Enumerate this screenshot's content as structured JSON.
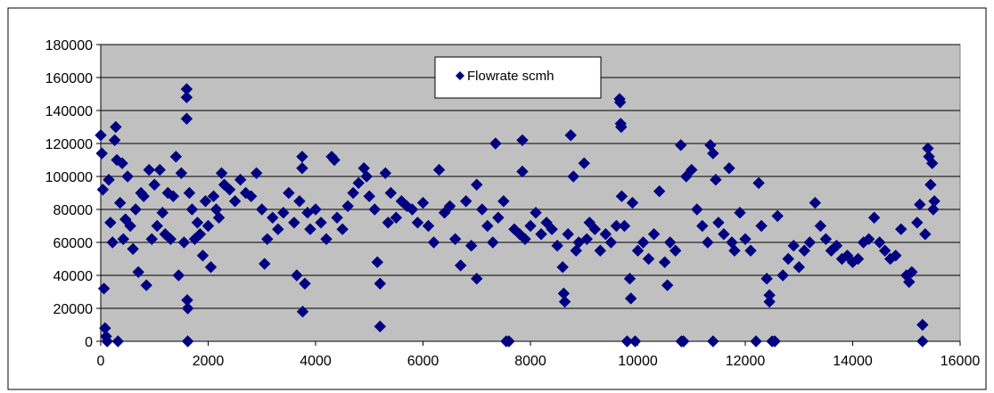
{
  "chart_data": {
    "type": "scatter",
    "title": "",
    "xlabel": "",
    "ylabel": "",
    "xlim": [
      0,
      16000
    ],
    "ylim": [
      0,
      180000
    ],
    "x_ticks": [
      0,
      2000,
      4000,
      6000,
      8000,
      10000,
      12000,
      14000,
      16000
    ],
    "y_ticks": [
      0,
      20000,
      40000,
      60000,
      80000,
      100000,
      120000,
      140000,
      160000,
      180000
    ],
    "x_tick_labels": [
      "0",
      "2000",
      "4000",
      "6000",
      "8000",
      "10000",
      "12000",
      "14000",
      "16000"
    ],
    "y_tick_labels": [
      "0",
      "20000",
      "40000",
      "60000",
      "80000",
      "100000",
      "120000",
      "140000",
      "160000",
      "180000"
    ],
    "grid": "horizontal",
    "legend_position": "top-center",
    "plot_background": "#c0c0c0",
    "marker": "diamond",
    "series": [
      {
        "name": "Flowrate scmh",
        "color": "#000080",
        "points": [
          [
            0,
            125000
          ],
          [
            20,
            114000
          ],
          [
            40,
            92000
          ],
          [
            60,
            32000
          ],
          [
            80,
            8000
          ],
          [
            100,
            3000
          ],
          [
            120,
            0
          ],
          [
            150,
            98000
          ],
          [
            180,
            72000
          ],
          [
            220,
            60000
          ],
          [
            260,
            122000
          ],
          [
            280,
            130000
          ],
          [
            300,
            110000
          ],
          [
            320,
            0
          ],
          [
            360,
            84000
          ],
          [
            400,
            108000
          ],
          [
            420,
            62000
          ],
          [
            460,
            74000
          ],
          [
            500,
            100000
          ],
          [
            550,
            70000
          ],
          [
            600,
            56000
          ],
          [
            650,
            80000
          ],
          [
            700,
            42000
          ],
          [
            750,
            90000
          ],
          [
            800,
            88000
          ],
          [
            850,
            34000
          ],
          [
            900,
            104000
          ],
          [
            950,
            62000
          ],
          [
            1000,
            95000
          ],
          [
            1050,
            70000
          ],
          [
            1100,
            104000
          ],
          [
            1150,
            78000
          ],
          [
            1200,
            65000
          ],
          [
            1250,
            90000
          ],
          [
            1300,
            62000
          ],
          [
            1350,
            88000
          ],
          [
            1400,
            112000
          ],
          [
            1450,
            40000
          ],
          [
            1500,
            102000
          ],
          [
            1550,
            60000
          ],
          [
            1600,
            153000
          ],
          [
            1600,
            148000
          ],
          [
            1600,
            135000
          ],
          [
            1610,
            25000
          ],
          [
            1620,
            20000
          ],
          [
            1620,
            0
          ],
          [
            1650,
            90000
          ],
          [
            1700,
            80000
          ],
          [
            1750,
            62000
          ],
          [
            1800,
            72000
          ],
          [
            1850,
            65000
          ],
          [
            1900,
            52000
          ],
          [
            1950,
            85000
          ],
          [
            2000,
            70000
          ],
          [
            2050,
            45000
          ],
          [
            2100,
            88000
          ],
          [
            2150,
            80000
          ],
          [
            2200,
            75000
          ],
          [
            2250,
            102000
          ],
          [
            2300,
            95000
          ],
          [
            2400,
            92000
          ],
          [
            2500,
            85000
          ],
          [
            2600,
            98000
          ],
          [
            2700,
            90000
          ],
          [
            2800,
            88000
          ],
          [
            2900,
            102000
          ],
          [
            3000,
            80000
          ],
          [
            3050,
            47000
          ],
          [
            3100,
            62000
          ],
          [
            3200,
            75000
          ],
          [
            3300,
            68000
          ],
          [
            3400,
            78000
          ],
          [
            3500,
            90000
          ],
          [
            3600,
            72000
          ],
          [
            3650,
            40000
          ],
          [
            3700,
            85000
          ],
          [
            3750,
            112000
          ],
          [
            3750,
            105000
          ],
          [
            3760,
            18000
          ],
          [
            3800,
            35000
          ],
          [
            3850,
            78000
          ],
          [
            3900,
            68000
          ],
          [
            4000,
            80000
          ],
          [
            4100,
            72000
          ],
          [
            4200,
            62000
          ],
          [
            4300,
            112000
          ],
          [
            4350,
            110000
          ],
          [
            4400,
            75000
          ],
          [
            4500,
            68000
          ],
          [
            4600,
            82000
          ],
          [
            4700,
            90000
          ],
          [
            4800,
            96000
          ],
          [
            4900,
            105000
          ],
          [
            4950,
            100000
          ],
          [
            5000,
            88000
          ],
          [
            5100,
            80000
          ],
          [
            5150,
            48000
          ],
          [
            5200,
            35000
          ],
          [
            5200,
            9000
          ],
          [
            5300,
            102000
          ],
          [
            5350,
            72000
          ],
          [
            5400,
            90000
          ],
          [
            5500,
            75000
          ],
          [
            5600,
            85000
          ],
          [
            5700,
            82000
          ],
          [
            5800,
            80000
          ],
          [
            5900,
            72000
          ],
          [
            6000,
            84000
          ],
          [
            6100,
            70000
          ],
          [
            6200,
            60000
          ],
          [
            6300,
            104000
          ],
          [
            6400,
            78000
          ],
          [
            6500,
            82000
          ],
          [
            6600,
            62000
          ],
          [
            6700,
            46000
          ],
          [
            6800,
            85000
          ],
          [
            6900,
            58000
          ],
          [
            7000,
            95000
          ],
          [
            7000,
            38000
          ],
          [
            7100,
            80000
          ],
          [
            7200,
            70000
          ],
          [
            7300,
            60000
          ],
          [
            7350,
            120000
          ],
          [
            7400,
            75000
          ],
          [
            7500,
            85000
          ],
          [
            7550,
            0
          ],
          [
            7600,
            0
          ],
          [
            7700,
            68000
          ],
          [
            7800,
            65000
          ],
          [
            7850,
            103000
          ],
          [
            7850,
            122000
          ],
          [
            7900,
            62000
          ],
          [
            8000,
            70000
          ],
          [
            8100,
            78000
          ],
          [
            8200,
            65000
          ],
          [
            8300,
            72000
          ],
          [
            8400,
            68000
          ],
          [
            8500,
            58000
          ],
          [
            8600,
            45000
          ],
          [
            8620,
            29000
          ],
          [
            8640,
            24000
          ],
          [
            8700,
            65000
          ],
          [
            8750,
            125000
          ],
          [
            8800,
            100000
          ],
          [
            8850,
            55000
          ],
          [
            8900,
            60000
          ],
          [
            9000,
            108000
          ],
          [
            9050,
            62000
          ],
          [
            9100,
            72000
          ],
          [
            9200,
            68000
          ],
          [
            9300,
            55000
          ],
          [
            9400,
            65000
          ],
          [
            9500,
            60000
          ],
          [
            9600,
            70000
          ],
          [
            9660,
            147000
          ],
          [
            9670,
            145000
          ],
          [
            9680,
            132000
          ],
          [
            9690,
            130000
          ],
          [
            9700,
            88000
          ],
          [
            9750,
            70000
          ],
          [
            9800,
            0
          ],
          [
            9850,
            38000
          ],
          [
            9870,
            26000
          ],
          [
            9900,
            84000
          ],
          [
            9950,
            0
          ],
          [
            10000,
            55000
          ],
          [
            10100,
            60000
          ],
          [
            10200,
            50000
          ],
          [
            10300,
            65000
          ],
          [
            10400,
            91000
          ],
          [
            10500,
            48000
          ],
          [
            10550,
            34000
          ],
          [
            10600,
            60000
          ],
          [
            10700,
            55000
          ],
          [
            10800,
            119000
          ],
          [
            10810,
            0
          ],
          [
            10850,
            0
          ],
          [
            10900,
            100000
          ],
          [
            11000,
            104000
          ],
          [
            11100,
            80000
          ],
          [
            11200,
            70000
          ],
          [
            11300,
            60000
          ],
          [
            11350,
            119000
          ],
          [
            11400,
            0
          ],
          [
            11400,
            114000
          ],
          [
            11450,
            98000
          ],
          [
            11500,
            72000
          ],
          [
            11600,
            65000
          ],
          [
            11700,
            105000
          ],
          [
            11750,
            60000
          ],
          [
            11800,
            55000
          ],
          [
            11900,
            78000
          ],
          [
            12000,
            62000
          ],
          [
            12100,
            55000
          ],
          [
            12200,
            0
          ],
          [
            12250,
            96000
          ],
          [
            12300,
            70000
          ],
          [
            12400,
            38000
          ],
          [
            12450,
            28000
          ],
          [
            12450,
            24000
          ],
          [
            12500,
            0
          ],
          [
            12550,
            0
          ],
          [
            12600,
            76000
          ],
          [
            12700,
            40000
          ],
          [
            12800,
            50000
          ],
          [
            12900,
            58000
          ],
          [
            13000,
            45000
          ],
          [
            13100,
            55000
          ],
          [
            13200,
            60000
          ],
          [
            13300,
            84000
          ],
          [
            13400,
            70000
          ],
          [
            13500,
            62000
          ],
          [
            13600,
            55000
          ],
          [
            13700,
            58000
          ],
          [
            13800,
            50000
          ],
          [
            13900,
            52000
          ],
          [
            14000,
            48000
          ],
          [
            14100,
            50000
          ],
          [
            14200,
            60000
          ],
          [
            14300,
            62000
          ],
          [
            14400,
            75000
          ],
          [
            14500,
            60000
          ],
          [
            14600,
            55000
          ],
          [
            14700,
            50000
          ],
          [
            14800,
            52000
          ],
          [
            14900,
            68000
          ],
          [
            15000,
            40000
          ],
          [
            15050,
            36000
          ],
          [
            15100,
            42000
          ],
          [
            15200,
            72000
          ],
          [
            15250,
            83000
          ],
          [
            15300,
            10000
          ],
          [
            15300,
            0
          ],
          [
            15350,
            65000
          ],
          [
            15400,
            117000
          ],
          [
            15420,
            112000
          ],
          [
            15450,
            95000
          ],
          [
            15480,
            108000
          ],
          [
            15500,
            80000
          ],
          [
            15520,
            85000
          ]
        ]
      }
    ]
  }
}
